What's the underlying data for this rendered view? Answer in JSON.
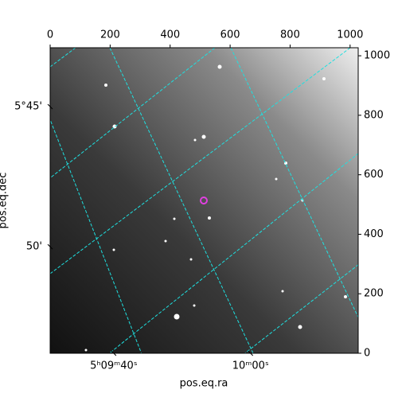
{
  "chart_data": {
    "type": "image",
    "x_label": "pos.eq.ra",
    "y_label": "pos.eq.dec",
    "xlim": [
      0,
      1027
    ],
    "ylim": [
      0,
      1027
    ],
    "xticks": [
      0,
      200,
      400,
      600,
      800,
      1000
    ],
    "yticks": [
      0,
      200,
      400,
      600,
      800,
      1000
    ],
    "ra_ticks": [
      {
        "value": 212,
        "label": "5ʰ09ᵐ40ˢ"
      },
      {
        "value": 668,
        "label": "10ᵐ00ˢ"
      }
    ],
    "dec_ticks": [
      {
        "value": 829,
        "label": "5°45'"
      },
      {
        "value": 358,
        "label": "50'"
      }
    ]
  }
}
